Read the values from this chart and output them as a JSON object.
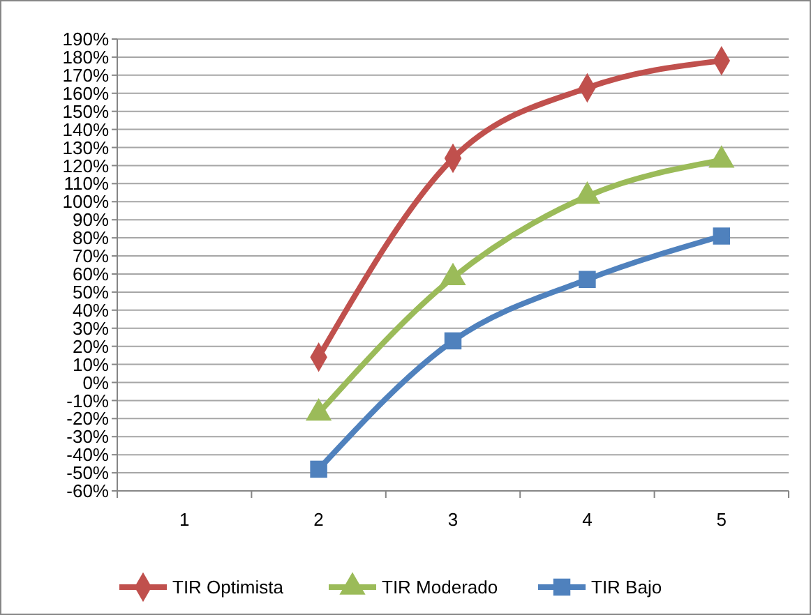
{
  "chart_data": {
    "type": "line",
    "categories": [
      "1",
      "2",
      "3",
      "4",
      "5"
    ],
    "series": [
      {
        "name": "TIR Optimista",
        "color": "#c0504d",
        "marker": "diamond",
        "values": [
          null,
          14,
          124,
          163,
          178
        ]
      },
      {
        "name": "TIR Moderado",
        "color": "#9bbb59",
        "marker": "triangle",
        "values": [
          null,
          -17,
          58,
          103,
          123
        ]
      },
      {
        "name": "TIR Bajo",
        "color": "#4f81bd",
        "marker": "square",
        "values": [
          null,
          -48,
          23,
          57,
          81
        ]
      }
    ],
    "ylim": [
      -60,
      190
    ],
    "yticks": [
      {
        "value": -60,
        "label": "-60%"
      },
      {
        "value": -50,
        "label": "-50%"
      },
      {
        "value": -40,
        "label": "-40%"
      },
      {
        "value": -30,
        "label": "-30%"
      },
      {
        "value": -20,
        "label": "-20%"
      },
      {
        "value": -10,
        "label": "-10%"
      },
      {
        "value": 0,
        "label": "0%"
      },
      {
        "value": 10,
        "label": "10%"
      },
      {
        "value": 20,
        "label": "20%"
      },
      {
        "value": 30,
        "label": "30%"
      },
      {
        "value": 40,
        "label": "40%"
      },
      {
        "value": 50,
        "label": "50%"
      },
      {
        "value": 60,
        "label": "60%"
      },
      {
        "value": 70,
        "label": "70%"
      },
      {
        "value": 80,
        "label": "80%"
      },
      {
        "value": 90,
        "label": "90%"
      },
      {
        "value": 100,
        "label": "100%"
      },
      {
        "value": 110,
        "label": "110%"
      },
      {
        "value": 120,
        "label": "120%"
      },
      {
        "value": 130,
        "label": "130%"
      },
      {
        "value": 140,
        "label": "140%"
      },
      {
        "value": 150,
        "label": "150%"
      },
      {
        "value": 160,
        "label": "160%"
      },
      {
        "value": 170,
        "label": "170%"
      },
      {
        "value": 180,
        "label": "180%"
      },
      {
        "value": 190,
        "label": "190%"
      }
    ],
    "grid": "y",
    "legend": "bottom",
    "line_style": "solid"
  }
}
